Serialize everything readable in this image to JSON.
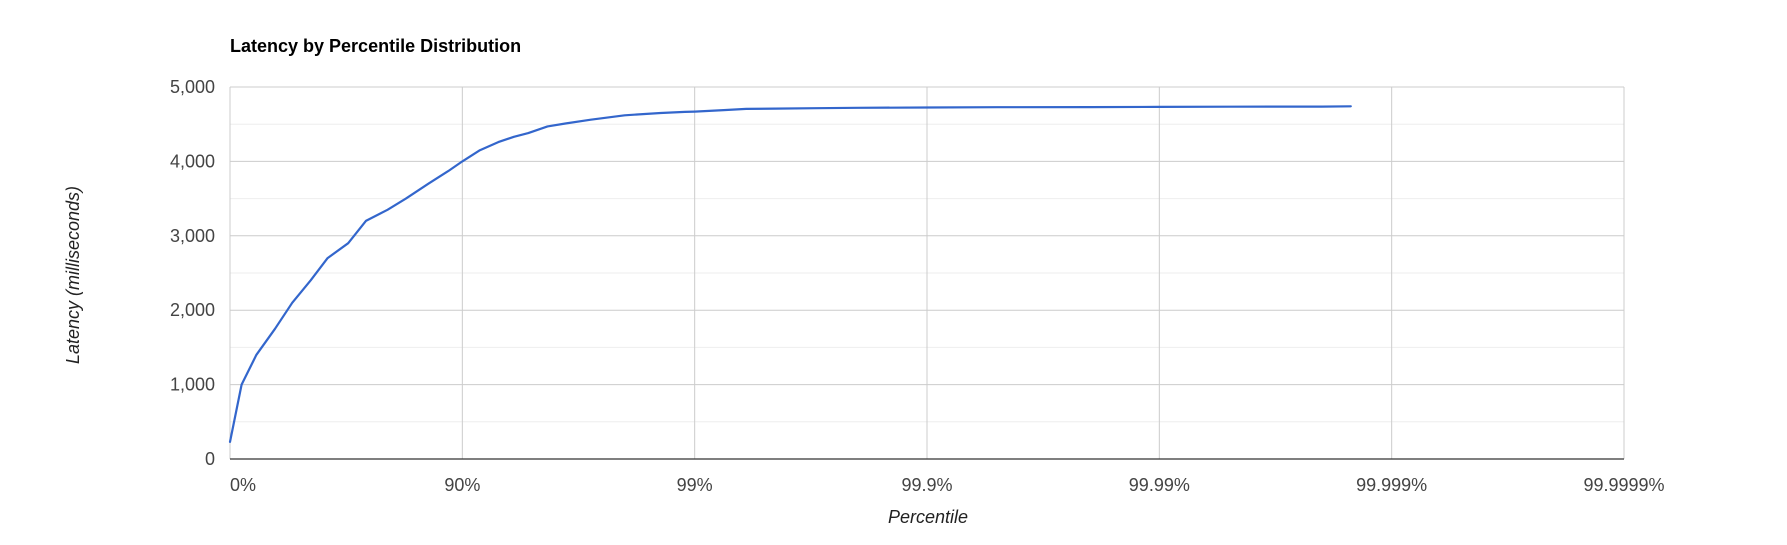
{
  "chart_data": {
    "type": "line",
    "title": "Latency by Percentile Distribution",
    "xlabel": "Percentile",
    "ylabel": "Latency (milliseconds)",
    "x_scale": "log-inverse (1/(1-percentile))",
    "xlim_percentile": [
      0,
      99.9999
    ],
    "ylim": [
      0,
      5000
    ],
    "y_ticks": [
      0,
      1000,
      2000,
      3000,
      4000,
      5000
    ],
    "y_tick_labels": [
      "0",
      "1,000",
      "2,000",
      "3,000",
      "4,000",
      "5,000"
    ],
    "x_ticks": [
      0,
      90,
      99,
      99.9,
      99.99,
      99.999,
      99.9999
    ],
    "x_tick_labels": [
      "0%",
      "90%",
      "99%",
      "99.9%",
      "99.99%",
      "99.999%",
      "99.9999%"
    ],
    "grid": true,
    "legend": "none",
    "series": [
      {
        "color": "#3366cc",
        "x": [
          0,
          10.9,
          23,
          36,
          46,
          55,
          62,
          69,
          74,
          79,
          82.5,
          86,
          88.5,
          90,
          91.6,
          93,
          94,
          94.8,
          95.7,
          96.4,
          97.2,
          98.0,
          98.6,
          98.9,
          99.0,
          99.25,
          99.4,
          99.55,
          99.7,
          99.8,
          99.9,
          99.95,
          99.98,
          99.99,
          99.995,
          99.998,
          99.9985
        ],
        "y": [
          230,
          1000,
          1400,
          1750,
          2100,
          2400,
          2700,
          2900,
          3200,
          3350,
          3500,
          3700,
          3870,
          4000,
          4150,
          4260,
          4330,
          4380,
          4470,
          4510,
          4560,
          4620,
          4650,
          4665,
          4670,
          4690,
          4705,
          4710,
          4715,
          4720,
          4725,
          4728,
          4730,
          4732,
          4735,
          4737,
          4740
        ]
      }
    ]
  }
}
